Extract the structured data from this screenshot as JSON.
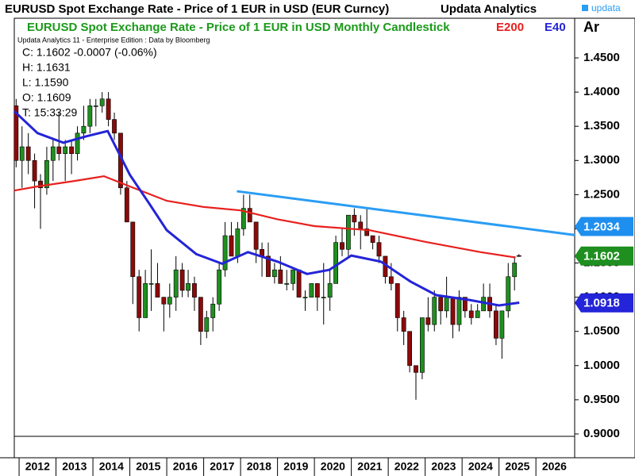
{
  "chart_data": {
    "type": "candlestick",
    "title": "EURUSD Spot Exchange Rate - Price of 1 EUR in USD (EUR Curncy)",
    "brand": "Updata Analytics",
    "logo": "updata",
    "subtitle": "EURUSD Spot Exchange Rate - Price of 1 EUR in USD Monthly Candlestick",
    "subtitle_color": "#1a9a1a",
    "panel_label": "Ar",
    "note": "Updata Analytics 11 - Enterprise Edition : Data by Bloomberg",
    "info": [
      "C: 1.1602  -0.0007 (-0.06%)",
      "H: 1.1631",
      "L: 1.1590",
      "O: 1.1609",
      "T: 15:33:29"
    ],
    "xlim": [
      2011.87,
      2027.05
    ],
    "xticks": [
      2012,
      2013,
      2014,
      2015,
      2016,
      2017,
      2018,
      2019,
      2020,
      2021,
      2022,
      2023,
      2024,
      2025,
      2026
    ],
    "ylim": [
      0.8965,
      1.4825
    ],
    "yticks": [
      {
        "value": 0.9,
        "label": "0.9000"
      },
      {
        "value": 0.95,
        "label": "0.9500"
      },
      {
        "value": 1.0,
        "label": "1.0000"
      },
      {
        "value": 1.05,
        "label": "1.0500"
      },
      {
        "value": 1.1,
        "label": "1.1000"
      },
      {
        "value": 1.15,
        "label": "1.1500"
      },
      {
        "value": 1.2,
        "label": "1.2000"
      },
      {
        "value": 1.25,
        "label": "1.2500"
      },
      {
        "value": 1.3,
        "label": "1.3000"
      },
      {
        "value": 1.35,
        "label": "1.3500"
      },
      {
        "value": 1.4,
        "label": "1.4000"
      },
      {
        "value": 1.45,
        "label": "1.4500"
      }
    ],
    "up_color": "#1f8f1f",
    "down_color": "#8b0a0a",
    "candles": {
      "x": [
        2011.92,
        2012.08,
        2012.25,
        2012.42,
        2012.58,
        2012.75,
        2012.92,
        2013.08,
        2013.25,
        2013.42,
        2013.58,
        2013.75,
        2013.92,
        2014.08,
        2014.25,
        2014.42,
        2014.58,
        2014.75,
        2014.92,
        2015.08,
        2015.25,
        2015.42,
        2015.58,
        2015.75,
        2015.92,
        2016.08,
        2016.25,
        2016.42,
        2016.58,
        2016.75,
        2016.92,
        2017.08,
        2017.25,
        2017.42,
        2017.58,
        2017.75,
        2017.92,
        2018.08,
        2018.25,
        2018.42,
        2018.58,
        2018.75,
        2018.92,
        2019.08,
        2019.25,
        2019.42,
        2019.58,
        2019.75,
        2019.92,
        2020.08,
        2020.25,
        2020.42,
        2020.58,
        2020.75,
        2020.92,
        2021.08,
        2021.25,
        2021.42,
        2021.58,
        2021.75,
        2021.92,
        2022.08,
        2022.25,
        2022.42,
        2022.58,
        2022.75,
        2022.92,
        2023.08,
        2023.25,
        2023.42,
        2023.58,
        2023.75,
        2023.92,
        2024.08,
        2024.25,
        2024.42,
        2024.58,
        2024.75,
        2024.92,
        2025.08,
        2025.25,
        2025.42,
        2025.54
      ],
      "open": [
        1.38,
        1.3,
        1.32,
        1.3,
        1.27,
        1.26,
        1.3,
        1.32,
        1.31,
        1.32,
        1.31,
        1.34,
        1.35,
        1.38,
        1.38,
        1.39,
        1.36,
        1.34,
        1.26,
        1.21,
        1.13,
        1.07,
        1.12,
        1.12,
        1.1,
        1.09,
        1.1,
        1.14,
        1.11,
        1.12,
        1.1,
        1.05,
        1.07,
        1.09,
        1.14,
        1.19,
        1.16,
        1.2,
        1.23,
        1.21,
        1.17,
        1.16,
        1.13,
        1.14,
        1.12,
        1.12,
        1.14,
        1.1,
        1.1,
        1.12,
        1.1,
        1.1,
        1.12,
        1.18,
        1.17,
        1.22,
        1.21,
        1.2,
        1.19,
        1.18,
        1.16,
        1.13,
        1.12,
        1.07,
        1.05,
        1.0,
        0.99,
        1.07,
        1.06,
        1.1,
        1.08,
        1.1,
        1.06,
        1.1,
        1.08,
        1.07,
        1.08,
        1.1,
        1.08,
        1.04,
        1.08,
        1.13,
        1.1609
      ],
      "high": [
        1.39,
        1.35,
        1.34,
        1.31,
        1.28,
        1.32,
        1.33,
        1.37,
        1.33,
        1.33,
        1.35,
        1.38,
        1.39,
        1.39,
        1.4,
        1.4,
        1.37,
        1.34,
        1.27,
        1.21,
        1.14,
        1.14,
        1.17,
        1.15,
        1.1,
        1.12,
        1.16,
        1.15,
        1.14,
        1.13,
        1.1,
        1.08,
        1.1,
        1.15,
        1.21,
        1.21,
        1.21,
        1.25,
        1.25,
        1.21,
        1.18,
        1.18,
        1.15,
        1.16,
        1.14,
        1.14,
        1.14,
        1.11,
        1.12,
        1.12,
        1.15,
        1.14,
        1.19,
        1.2,
        1.22,
        1.23,
        1.22,
        1.23,
        1.19,
        1.19,
        1.16,
        1.15,
        1.12,
        1.08,
        1.05,
        1.0,
        1.07,
        1.1,
        1.11,
        1.1,
        1.13,
        1.1,
        1.11,
        1.1,
        1.09,
        1.09,
        1.12,
        1.12,
        1.09,
        1.05,
        1.15,
        1.16,
        1.1631
      ],
      "low": [
        1.29,
        1.26,
        1.28,
        1.23,
        1.2,
        1.25,
        1.27,
        1.3,
        1.27,
        1.28,
        1.3,
        1.33,
        1.34,
        1.35,
        1.37,
        1.35,
        1.33,
        1.25,
        1.21,
        1.09,
        1.05,
        1.07,
        1.08,
        1.1,
        1.05,
        1.07,
        1.08,
        1.1,
        1.1,
        1.08,
        1.03,
        1.04,
        1.05,
        1.08,
        1.13,
        1.16,
        1.15,
        1.19,
        1.21,
        1.15,
        1.13,
        1.13,
        1.12,
        1.12,
        1.11,
        1.11,
        1.1,
        1.08,
        1.1,
        1.08,
        1.06,
        1.08,
        1.12,
        1.16,
        1.16,
        1.19,
        1.17,
        1.19,
        1.17,
        1.15,
        1.12,
        1.11,
        1.05,
        1.03,
        0.99,
        0.95,
        0.98,
        1.05,
        1.05,
        1.06,
        1.07,
        1.04,
        1.05,
        1.07,
        1.06,
        1.07,
        1.08,
        1.07,
        1.03,
        1.01,
        1.07,
        1.11,
        1.159
      ],
      "close": [
        1.3,
        1.32,
        1.3,
        1.27,
        1.26,
        1.3,
        1.32,
        1.31,
        1.32,
        1.31,
        1.34,
        1.35,
        1.38,
        1.38,
        1.39,
        1.36,
        1.34,
        1.26,
        1.21,
        1.13,
        1.07,
        1.12,
        1.12,
        1.1,
        1.09,
        1.1,
        1.14,
        1.11,
        1.12,
        1.1,
        1.05,
        1.07,
        1.09,
        1.14,
        1.19,
        1.16,
        1.2,
        1.23,
        1.21,
        1.17,
        1.16,
        1.13,
        1.14,
        1.12,
        1.12,
        1.14,
        1.1,
        1.1,
        1.12,
        1.1,
        1.1,
        1.12,
        1.18,
        1.17,
        1.22,
        1.21,
        1.2,
        1.19,
        1.18,
        1.16,
        1.13,
        1.12,
        1.07,
        1.05,
        1.0,
        0.99,
        1.07,
        1.06,
        1.1,
        1.08,
        1.1,
        1.06,
        1.1,
        1.08,
        1.07,
        1.08,
        1.1,
        1.08,
        1.04,
        1.08,
        1.13,
        1.15,
        1.1602
      ]
    },
    "series": [
      {
        "name": "E200",
        "color": "#e8201e",
        "x": [
          2011.87,
          2012.5,
          2013.5,
          2014.3,
          2015,
          2016,
          2017,
          2018,
          2019,
          2020,
          2021.5,
          2023,
          2024.5,
          2025.45
        ],
        "values": [
          1.256,
          1.262,
          1.27,
          1.277,
          1.262,
          1.241,
          1.232,
          1.227,
          1.214,
          1.204,
          1.198,
          1.181,
          1.166,
          1.158
        ]
      },
      {
        "name": "E40",
        "color": "#2424d8",
        "x": [
          2011.87,
          2012.5,
          2013.2,
          2013.8,
          2014.4,
          2015,
          2015.5,
          2016,
          2016.8,
          2017.5,
          2018.2,
          2019,
          2019.8,
          2020.4,
          2021,
          2021.8,
          2022.6,
          2023.3,
          2024.2,
          2025,
          2025.55
        ],
        "values": [
          1.372,
          1.34,
          1.326,
          1.335,
          1.343,
          1.279,
          1.239,
          1.198,
          1.163,
          1.149,
          1.166,
          1.152,
          1.134,
          1.14,
          1.161,
          1.152,
          1.123,
          1.103,
          1.096,
          1.088,
          1.092
        ]
      }
    ],
    "trendline": {
      "color": "#2a9df4",
      "x": [
        2017.9,
        2027.05
      ],
      "values": [
        1.255,
        1.191
      ]
    },
    "price_labels": [
      {
        "value": 1.2034,
        "color": "#1e8fef"
      },
      {
        "value": 1.1602,
        "color": "#1f8f1f"
      },
      {
        "value": 1.0918,
        "color": "#2424d8"
      }
    ]
  }
}
